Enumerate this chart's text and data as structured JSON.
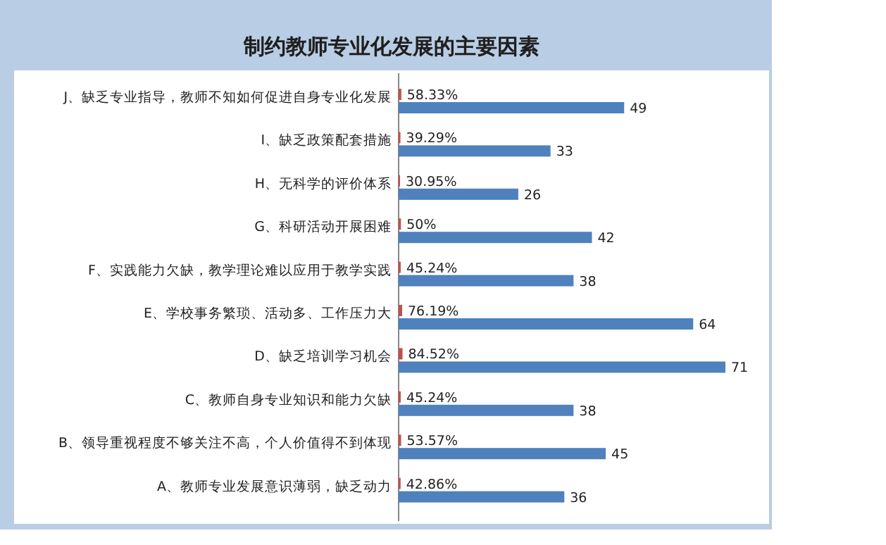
{
  "chart_data": {
    "type": "bar",
    "orientation": "horizontal",
    "title": "制约教师专业化发展的主要因素",
    "categories": [
      "J、缺乏专业指导，教师不知如何促进自身专业化发展",
      "I、缺乏政策配套措施",
      "H、无科学的评价体系",
      "G、科研活动开展困难",
      "F、实践能力欠缺，教学理论难以应用于教学实践",
      "E、学校事务繁琐、活动多、工作压力大",
      "D、缺乏培训学习机会",
      "C、教师自身专业知识和能力欠缺",
      "B、领导重视程度不够关注不高，个人价值得不到体现",
      "A、教师专业发展意识薄弱，缺乏动力"
    ],
    "series": [
      {
        "color": "#c0504d",
        "values": [
          0.5833,
          0.3929,
          0.3095,
          0.5,
          0.4524,
          0.7619,
          0.8452,
          0.4524,
          0.5357,
          0.4286
        ],
        "value_labels": [
          "58.33%",
          "39.29%",
          "30.95%",
          "50%",
          "45.24%",
          "76.19%",
          "84.52%",
          "45.24%",
          "53.57%",
          "42.86%"
        ]
      },
      {
        "color": "#4f81bd",
        "values": [
          49,
          33,
          26,
          42,
          38,
          64,
          71,
          38,
          45,
          36
        ],
        "value_labels": [
          "49",
          "33",
          "26",
          "42",
          "38",
          "64",
          "71",
          "38",
          "45",
          "36"
        ]
      }
    ]
  }
}
